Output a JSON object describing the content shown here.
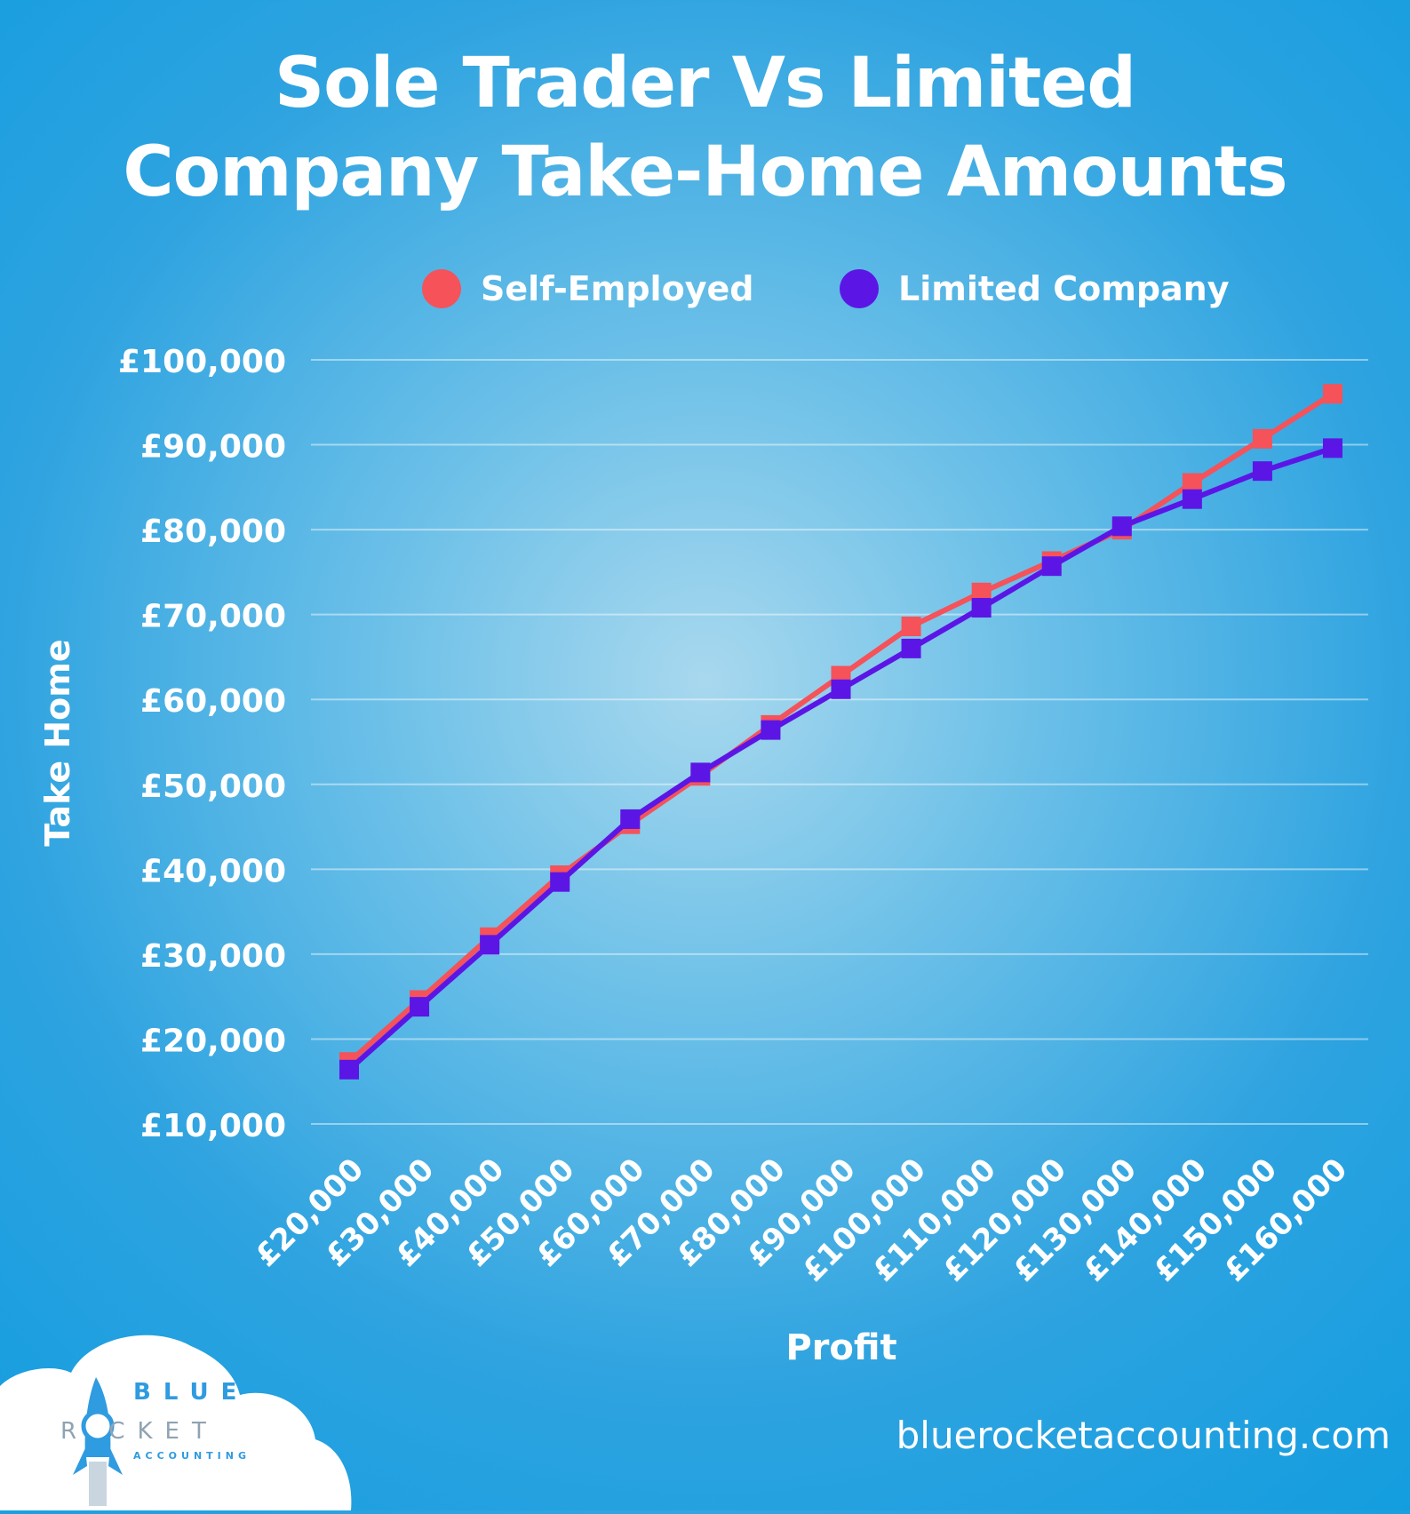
{
  "header": {
    "title_line1": "Sole Trader Vs Limited",
    "title_line2": "Company Take-Home Amounts"
  },
  "legend": {
    "items": [
      {
        "label": "Self-Employed",
        "color": "#f5525a"
      },
      {
        "label": "Limited Company",
        "color": "#5b16e6"
      }
    ]
  },
  "chart_data": {
    "type": "line",
    "xlabel": "Profit",
    "ylabel": "Take Home",
    "ylim": [
      10000,
      100000
    ],
    "yticks": [
      "£10,000",
      "£20,000",
      "£30,000",
      "£40,000",
      "£50,000",
      "£60,000",
      "£70,000",
      "£80,000",
      "£90,000",
      "£100,000"
    ],
    "categories": [
      "£20,000",
      "£30,000",
      "£40,000",
      "£50,000",
      "£60,000",
      "£70,000",
      "£80,000",
      "£90,000",
      "£100,000",
      "£110,000",
      "£120,000",
      "£130,000",
      "£140,000",
      "£150,000",
      "£160,000"
    ],
    "series": [
      {
        "name": "Self-Employed",
        "color": "#f5525a",
        "values": [
          17300,
          24600,
          32000,
          39300,
          45300,
          51000,
          57000,
          62800,
          68600,
          72600,
          76300,
          80000,
          85500,
          90700,
          96000
        ]
      },
      {
        "name": "Limited Company",
        "color": "#5b16e6",
        "values": [
          16400,
          23800,
          31100,
          38500,
          45900,
          51400,
          56400,
          61200,
          66000,
          70800,
          75700,
          80400,
          83600,
          86900,
          89600
        ]
      }
    ],
    "grid": true,
    "legend_position": "top"
  },
  "footer": {
    "website": "bluerocketaccounting.com"
  },
  "logo": {
    "line1": "BLUE",
    "line2": "R  CKET",
    "line3": "ACCOUNTING"
  }
}
